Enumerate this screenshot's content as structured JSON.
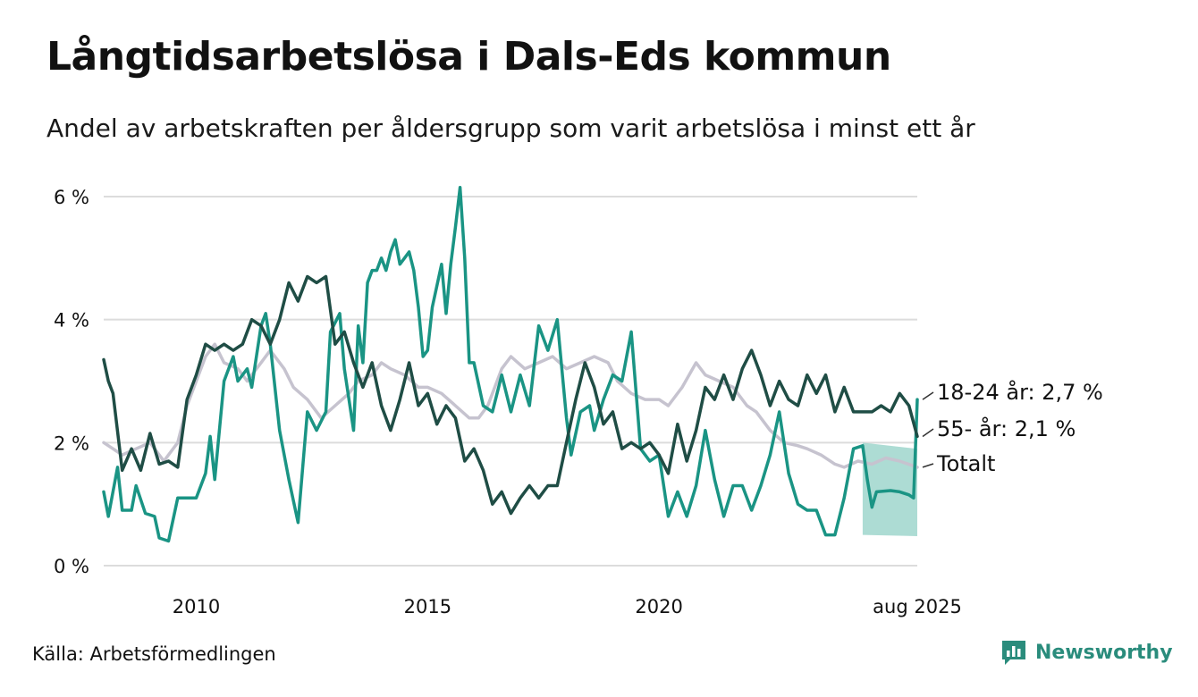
{
  "title": "Långtidsarbetslösa i Dals-Eds kommun",
  "subtitle": "Andel av arbetskraften per åldersgrupp som varit arbetslösa i minst ett år",
  "source": "Källa: Arbetsförmedlingen",
  "brand": "Newsworthy",
  "chart_data": {
    "type": "line",
    "title": "Långtidsarbetslösa i Dals-Eds kommun",
    "subtitle": "Andel av arbetskraften per åldersgrupp som varit arbetslösa i minst ett år",
    "xlabel": "",
    "ylabel": "",
    "xlim": [
      2008.0,
      2025.6
    ],
    "ylim": [
      0,
      6.2
    ],
    "y_ticks": [
      0,
      2,
      4,
      6
    ],
    "y_tick_labels": [
      "0 %",
      "2 %",
      "4 %",
      "6 %"
    ],
    "x_ticks": [
      2010,
      2015,
      2020,
      2025.58
    ],
    "x_tick_labels": [
      "2010",
      "2015",
      "2020",
      "aug 2025"
    ],
    "grid": "horizontal",
    "series": [
      {
        "name": "Totalt",
        "end_label": "Totalt",
        "color": "#c6c3cf",
        "points": [
          [
            2008.0,
            2.0
          ],
          [
            2008.2,
            1.9
          ],
          [
            2008.4,
            1.8
          ],
          [
            2008.7,
            1.9
          ],
          [
            2009.0,
            2.0
          ],
          [
            2009.3,
            1.7
          ],
          [
            2009.6,
            2.0
          ],
          [
            2009.8,
            2.6
          ],
          [
            2010.0,
            3.0
          ],
          [
            2010.2,
            3.4
          ],
          [
            2010.4,
            3.6
          ],
          [
            2010.6,
            3.3
          ],
          [
            2010.9,
            3.2
          ],
          [
            2011.1,
            3.0
          ],
          [
            2011.4,
            3.3
          ],
          [
            2011.6,
            3.5
          ],
          [
            2011.9,
            3.2
          ],
          [
            2012.1,
            2.9
          ],
          [
            2012.4,
            2.7
          ],
          [
            2012.7,
            2.4
          ],
          [
            2013.0,
            2.6
          ],
          [
            2013.3,
            2.8
          ],
          [
            2013.5,
            3.0
          ],
          [
            2013.8,
            3.1
          ],
          [
            2014.0,
            3.3
          ],
          [
            2014.2,
            3.2
          ],
          [
            2014.5,
            3.1
          ],
          [
            2014.8,
            2.9
          ],
          [
            2015.0,
            2.9
          ],
          [
            2015.3,
            2.8
          ],
          [
            2015.6,
            2.6
          ],
          [
            2015.9,
            2.4
          ],
          [
            2016.1,
            2.4
          ],
          [
            2016.3,
            2.6
          ],
          [
            2016.6,
            3.2
          ],
          [
            2016.8,
            3.4
          ],
          [
            2017.1,
            3.2
          ],
          [
            2017.4,
            3.3
          ],
          [
            2017.7,
            3.4
          ],
          [
            2018.0,
            3.2
          ],
          [
            2018.3,
            3.3
          ],
          [
            2018.6,
            3.4
          ],
          [
            2018.9,
            3.3
          ],
          [
            2019.1,
            3.0
          ],
          [
            2019.4,
            2.8
          ],
          [
            2019.7,
            2.7
          ],
          [
            2020.0,
            2.7
          ],
          [
            2020.2,
            2.6
          ],
          [
            2020.5,
            2.9
          ],
          [
            2020.8,
            3.3
          ],
          [
            2021.0,
            3.1
          ],
          [
            2021.3,
            3.0
          ],
          [
            2021.6,
            2.9
          ],
          [
            2021.9,
            2.6
          ],
          [
            2022.1,
            2.5
          ],
          [
            2022.4,
            2.2
          ],
          [
            2022.7,
            2.0
          ],
          [
            2023.0,
            1.95
          ],
          [
            2023.2,
            1.9
          ],
          [
            2023.5,
            1.8
          ],
          [
            2023.8,
            1.65
          ],
          [
            2024.0,
            1.6
          ],
          [
            2024.3,
            1.7
          ],
          [
            2024.6,
            1.65
          ],
          [
            2024.9,
            1.75
          ],
          [
            2025.2,
            1.7
          ],
          [
            2025.58,
            1.6
          ]
        ]
      },
      {
        "name": "18-24 år",
        "end_label": "18-24 år: 2,7 %",
        "color": "#1a9484",
        "points": [
          [
            2008.0,
            1.2
          ],
          [
            2008.1,
            0.8
          ],
          [
            2008.3,
            1.6
          ],
          [
            2008.4,
            0.9
          ],
          [
            2008.6,
            0.9
          ],
          [
            2008.7,
            1.3
          ],
          [
            2008.9,
            0.85
          ],
          [
            2009.1,
            0.8
          ],
          [
            2009.2,
            0.45
          ],
          [
            2009.4,
            0.4
          ],
          [
            2009.6,
            1.1
          ],
          [
            2009.8,
            1.1
          ],
          [
            2010.0,
            1.1
          ],
          [
            2010.2,
            1.5
          ],
          [
            2010.3,
            2.1
          ],
          [
            2010.4,
            1.4
          ],
          [
            2010.6,
            3.0
          ],
          [
            2010.8,
            3.4
          ],
          [
            2010.9,
            3.0
          ],
          [
            2011.1,
            3.2
          ],
          [
            2011.2,
            2.9
          ],
          [
            2011.4,
            3.9
          ],
          [
            2011.5,
            4.1
          ],
          [
            2011.6,
            3.6
          ],
          [
            2011.8,
            2.2
          ],
          [
            2012.0,
            1.4
          ],
          [
            2012.2,
            0.7
          ],
          [
            2012.4,
            2.5
          ],
          [
            2012.6,
            2.2
          ],
          [
            2012.8,
            2.5
          ],
          [
            2012.9,
            3.8
          ],
          [
            2013.1,
            4.1
          ],
          [
            2013.2,
            3.2
          ],
          [
            2013.4,
            2.2
          ],
          [
            2013.5,
            3.9
          ],
          [
            2013.6,
            3.3
          ],
          [
            2013.7,
            4.6
          ],
          [
            2013.8,
            4.8
          ],
          [
            2013.9,
            4.8
          ],
          [
            2014.0,
            5.0
          ],
          [
            2014.1,
            4.8
          ],
          [
            2014.2,
            5.1
          ],
          [
            2014.3,
            5.3
          ],
          [
            2014.4,
            4.9
          ],
          [
            2014.5,
            5.0
          ],
          [
            2014.6,
            5.1
          ],
          [
            2014.7,
            4.8
          ],
          [
            2014.8,
            4.2
          ],
          [
            2014.9,
            3.4
          ],
          [
            2015.0,
            3.5
          ],
          [
            2015.1,
            4.2
          ],
          [
            2015.3,
            4.9
          ],
          [
            2015.4,
            4.1
          ],
          [
            2015.5,
            4.9
          ],
          [
            2015.6,
            5.5
          ],
          [
            2015.7,
            6.15
          ],
          [
            2015.8,
            5.0
          ],
          [
            2015.9,
            3.3
          ],
          [
            2016.0,
            3.3
          ],
          [
            2016.2,
            2.6
          ],
          [
            2016.4,
            2.5
          ],
          [
            2016.6,
            3.1
          ],
          [
            2016.8,
            2.5
          ],
          [
            2017.0,
            3.1
          ],
          [
            2017.2,
            2.6
          ],
          [
            2017.4,
            3.9
          ],
          [
            2017.6,
            3.5
          ],
          [
            2017.8,
            4.0
          ],
          [
            2018.0,
            2.4
          ],
          [
            2018.1,
            1.8
          ],
          [
            2018.3,
            2.5
          ],
          [
            2018.5,
            2.6
          ],
          [
            2018.6,
            2.2
          ],
          [
            2018.8,
            2.7
          ],
          [
            2019.0,
            3.1
          ],
          [
            2019.2,
            3.0
          ],
          [
            2019.4,
            3.8
          ],
          [
            2019.6,
            1.9
          ],
          [
            2019.8,
            1.7
          ],
          [
            2020.0,
            1.8
          ],
          [
            2020.2,
            0.8
          ],
          [
            2020.4,
            1.2
          ],
          [
            2020.6,
            0.8
          ],
          [
            2020.8,
            1.3
          ],
          [
            2021.0,
            2.2
          ],
          [
            2021.2,
            1.4
          ],
          [
            2021.4,
            0.8
          ],
          [
            2021.6,
            1.3
          ],
          [
            2021.8,
            1.3
          ],
          [
            2022.0,
            0.9
          ],
          [
            2022.2,
            1.3
          ],
          [
            2022.4,
            1.8
          ],
          [
            2022.6,
            2.5
          ],
          [
            2022.8,
            1.5
          ],
          [
            2023.0,
            1.0
          ],
          [
            2023.2,
            0.9
          ],
          [
            2023.4,
            0.9
          ],
          [
            2023.6,
            0.5
          ],
          [
            2023.8,
            0.5
          ],
          [
            2024.0,
            1.1
          ],
          [
            2024.2,
            1.9
          ],
          [
            2024.4,
            1.95
          ],
          [
            2024.5,
            1.4
          ],
          [
            2024.6,
            0.95
          ],
          [
            2024.7,
            1.2
          ],
          [
            2025.0,
            1.22
          ],
          [
            2025.2,
            1.2
          ],
          [
            2025.4,
            1.15
          ],
          [
            2025.5,
            1.1
          ],
          [
            2025.58,
            2.7
          ]
        ]
      },
      {
        "name": "55- år",
        "end_label": "55- år: 2,1 %",
        "color": "#1f4d45",
        "points": [
          [
            2008.0,
            3.35
          ],
          [
            2008.1,
            3.0
          ],
          [
            2008.2,
            2.8
          ],
          [
            2008.4,
            1.55
          ],
          [
            2008.6,
            1.9
          ],
          [
            2008.8,
            1.55
          ],
          [
            2009.0,
            2.15
          ],
          [
            2009.2,
            1.65
          ],
          [
            2009.4,
            1.7
          ],
          [
            2009.6,
            1.6
          ],
          [
            2009.8,
            2.7
          ],
          [
            2010.0,
            3.1
          ],
          [
            2010.2,
            3.6
          ],
          [
            2010.4,
            3.5
          ],
          [
            2010.6,
            3.6
          ],
          [
            2010.8,
            3.5
          ],
          [
            2011.0,
            3.6
          ],
          [
            2011.2,
            4.0
          ],
          [
            2011.4,
            3.9
          ],
          [
            2011.6,
            3.6
          ],
          [
            2011.8,
            4.0
          ],
          [
            2012.0,
            4.6
          ],
          [
            2012.2,
            4.3
          ],
          [
            2012.4,
            4.7
          ],
          [
            2012.6,
            4.6
          ],
          [
            2012.8,
            4.7
          ],
          [
            2013.0,
            3.6
          ],
          [
            2013.2,
            3.8
          ],
          [
            2013.4,
            3.3
          ],
          [
            2013.6,
            2.9
          ],
          [
            2013.8,
            3.3
          ],
          [
            2014.0,
            2.6
          ],
          [
            2014.2,
            2.2
          ],
          [
            2014.4,
            2.7
          ],
          [
            2014.6,
            3.3
          ],
          [
            2014.8,
            2.6
          ],
          [
            2015.0,
            2.8
          ],
          [
            2015.2,
            2.3
          ],
          [
            2015.4,
            2.6
          ],
          [
            2015.6,
            2.4
          ],
          [
            2015.8,
            1.7
          ],
          [
            2016.0,
            1.9
          ],
          [
            2016.2,
            1.55
          ],
          [
            2016.4,
            1.0
          ],
          [
            2016.6,
            1.2
          ],
          [
            2016.8,
            0.85
          ],
          [
            2017.0,
            1.1
          ],
          [
            2017.2,
            1.3
          ],
          [
            2017.4,
            1.1
          ],
          [
            2017.6,
            1.3
          ],
          [
            2017.8,
            1.3
          ],
          [
            2018.0,
            2.0
          ],
          [
            2018.2,
            2.7
          ],
          [
            2018.4,
            3.3
          ],
          [
            2018.6,
            2.9
          ],
          [
            2018.8,
            2.3
          ],
          [
            2019.0,
            2.5
          ],
          [
            2019.2,
            1.9
          ],
          [
            2019.4,
            2.0
          ],
          [
            2019.6,
            1.9
          ],
          [
            2019.8,
            2.0
          ],
          [
            2020.0,
            1.8
          ],
          [
            2020.2,
            1.5
          ],
          [
            2020.4,
            2.3
          ],
          [
            2020.6,
            1.7
          ],
          [
            2020.8,
            2.2
          ],
          [
            2021.0,
            2.9
          ],
          [
            2021.2,
            2.7
          ],
          [
            2021.4,
            3.1
          ],
          [
            2021.6,
            2.7
          ],
          [
            2021.8,
            3.2
          ],
          [
            2022.0,
            3.5
          ],
          [
            2022.2,
            3.1
          ],
          [
            2022.4,
            2.6
          ],
          [
            2022.6,
            3.0
          ],
          [
            2022.8,
            2.7
          ],
          [
            2023.0,
            2.6
          ],
          [
            2023.2,
            3.1
          ],
          [
            2023.4,
            2.8
          ],
          [
            2023.6,
            3.1
          ],
          [
            2023.8,
            2.5
          ],
          [
            2024.0,
            2.9
          ],
          [
            2024.2,
            2.5
          ],
          [
            2024.4,
            2.5
          ],
          [
            2024.6,
            2.5
          ],
          [
            2024.8,
            2.6
          ],
          [
            2025.0,
            2.5
          ],
          [
            2025.2,
            2.8
          ],
          [
            2025.4,
            2.6
          ],
          [
            2025.58,
            2.1
          ]
        ]
      }
    ],
    "uncertainty_band": {
      "series": "18-24 år",
      "color": "#9fd6cc",
      "x": [
        2024.4,
        2025.58
      ],
      "lower": [
        0.5,
        0.48
      ],
      "upper": [
        2.0,
        1.9
      ]
    }
  }
}
